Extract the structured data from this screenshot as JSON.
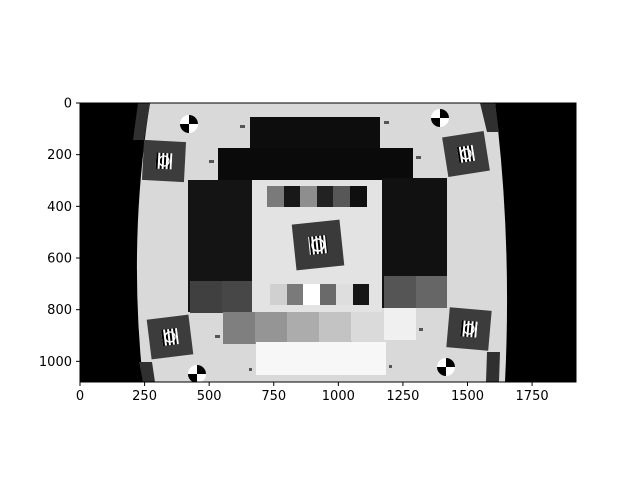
{
  "chart_data": {
    "type": "image",
    "title": "",
    "xlabel": "",
    "ylabel": "",
    "xlim": [
      0,
      1920
    ],
    "ylim": [
      1080,
      0
    ],
    "image_extent": {
      "width": 1920,
      "height": 1080
    },
    "x_ticks": [
      {
        "value": 0,
        "label": "0"
      },
      {
        "value": 250,
        "label": "250"
      },
      {
        "value": 500,
        "label": "500"
      },
      {
        "value": 750,
        "label": "750"
      },
      {
        "value": 1000,
        "label": "1000"
      },
      {
        "value": 1250,
        "label": "1250"
      },
      {
        "value": 1500,
        "label": "1500"
      },
      {
        "value": 1750,
        "label": "1750"
      }
    ],
    "y_ticks": [
      {
        "value": 0,
        "label": "0"
      },
      {
        "value": 200,
        "label": "200"
      },
      {
        "value": 400,
        "label": "400"
      },
      {
        "value": 600,
        "label": "600"
      },
      {
        "value": 800,
        "label": "800"
      },
      {
        "value": 1000,
        "label": "1000"
      }
    ],
    "image_description": "Grayscale camera test chart (barrel-distorted) with gray-level patches, corner registration marks and siemens-star targets",
    "colors": {
      "background_outside_chart": "#000000",
      "chart_paper": "#d9d9d9",
      "center_panel": "#e6e6e6",
      "axes": "#000000"
    }
  }
}
